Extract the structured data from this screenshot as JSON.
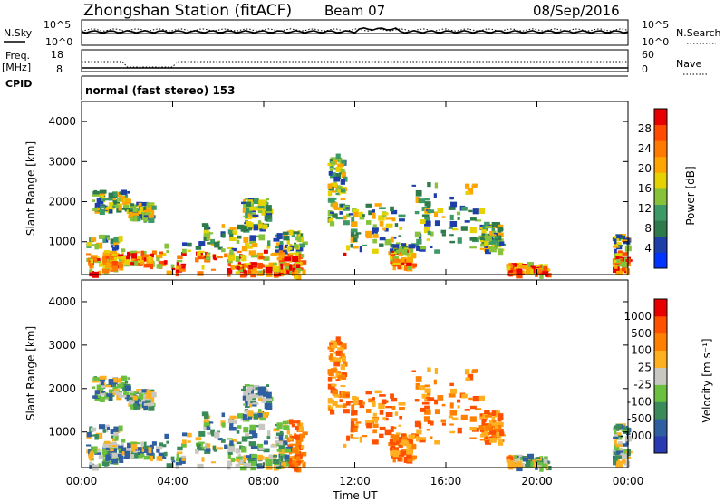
{
  "header": {
    "station": "Zhongshan Station (fitACF)",
    "beam": "Beam 07",
    "date": "08/Sep/2016"
  },
  "top_panels": {
    "noise": {
      "left_label": "N.Sky",
      "left_ticks": [
        "10^5",
        "10^0"
      ],
      "right_label": "N.Search",
      "right_ticks": [
        "10^5",
        "10^0"
      ]
    },
    "freq": {
      "left_label_1": "Freq.",
      "left_label_2": "[MHz]",
      "left_ticks": [
        "18",
        "8"
      ],
      "right_label": "Nave",
      "right_ticks": [
        "60",
        "0"
      ]
    },
    "cpid": {
      "label": "CPID",
      "text": "normal (fast stereo) 153"
    }
  },
  "chart_data": [
    {
      "type": "heatmap",
      "name_text": "",
      "ylabel": "Slant Range [km]",
      "xlabel": "Time UT",
      "xlim_hours": [
        0,
        24
      ],
      "ylim_km": [
        180,
        4500
      ],
      "x_ticks": [
        "00:00",
        "04:00",
        "08:00",
        "12:00",
        "16:00",
        "20:00",
        "00:00"
      ],
      "y_ticks": [
        "1000",
        "2000",
        "3000",
        "4000"
      ],
      "colorbar": {
        "label": "Power [dB]",
        "ticks": [
          "4",
          "8",
          "12",
          "16",
          "20",
          "24",
          "28"
        ],
        "range": [
          0,
          30
        ],
        "colors": [
          "#0033ff",
          "#1f3fa8",
          "#2f7a4a",
          "#3d9a66",
          "#88c23a",
          "#e6d200",
          "#ffa500",
          "#ff7a00",
          "#ff4a00",
          "#e80000"
        ]
      }
    },
    {
      "type": "heatmap",
      "ylabel": "Slant Range [km]",
      "xlabel": "Time UT",
      "xlim_hours": [
        0,
        24
      ],
      "ylim_km": [
        180,
        4500
      ],
      "x_ticks": [
        "00:00",
        "04:00",
        "08:00",
        "12:00",
        "16:00",
        "20:00",
        "00:00"
      ],
      "y_ticks": [
        "1000",
        "2000",
        "3000",
        "4000"
      ],
      "colorbar": {
        "label": "Velocity [m s⁻¹]",
        "ticks": [
          "1000",
          "500",
          "100",
          "25",
          "-25",
          "-100",
          "-500",
          "-1000"
        ],
        "colors": [
          "#2a3ab0",
          "#2f5fa0",
          "#3a8a5a",
          "#6cc040",
          "#c8c8c0",
          "#ffb020",
          "#ff8000",
          "#ff5000",
          "#e80000"
        ]
      }
    }
  ]
}
